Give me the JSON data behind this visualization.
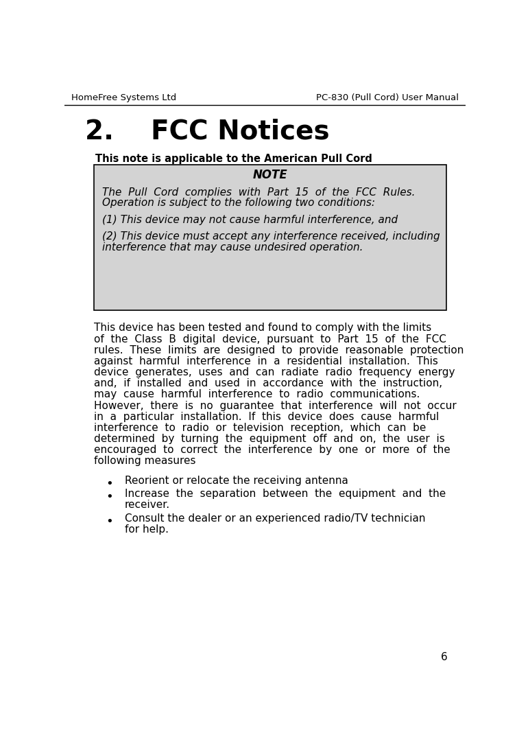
{
  "header_left": "HomeFree Systems Ltd",
  "header_right": "PC-830 (Pull Cord) User Manual",
  "section_number": "2.",
  "section_title": "FCC Notices",
  "applicability_note": "This note is applicable to the American Pull Cord",
  "note_title": "NOTE",
  "note_box_bg": "#d3d3d3",
  "note_box_border": "#000000",
  "note_italic_lines": [
    "The  Pull  Cord  complies  with  Part  15  of  the  FCC  Rules.",
    "Operation is subject to the following two conditions:",
    "",
    "(1) This device may not cause harmful interference, and",
    "",
    "(2) This device must accept any interference received, including",
    "interference that may cause undesired operation."
  ],
  "body_lines": [
    "This device has been tested and found to comply with the limits",
    "of  the  Class  B  digital  device,  pursuant  to  Part  15  of  the  FCC",
    "rules.  These  limits  are  designed  to  provide  reasonable  protection",
    "against  harmful  interference  in  a  residential  installation.  This",
    "device  generates,  uses  and  can  radiate  radio  frequency  energy",
    "and,  if  installed  and  used  in  accordance  with  the  instruction,",
    "may  cause  harmful  interference  to  radio  communications.",
    "However,  there  is  no  guarantee  that  interference  will  not  occur",
    "in  a  particular  installation.  If  this  device  does  cause  harmful",
    "interference  to  radio  or  television  reception,  which  can  be",
    "determined  by  turning  the  equipment  off  and  on,  the  user  is",
    "encouraged  to  correct  the  interference  by  one  or  more  of  the",
    "following measures"
  ],
  "bullet_items": [
    [
      "Reorient or relocate the receiving antenna"
    ],
    [
      "Increase  the  separation  between  the  equipment  and  the",
      "receiver."
    ],
    [
      "Consult the dealer or an experienced radio/TV technician",
      "for help."
    ]
  ],
  "page_number": "6",
  "bg_color": "#ffffff",
  "text_color": "#000000"
}
